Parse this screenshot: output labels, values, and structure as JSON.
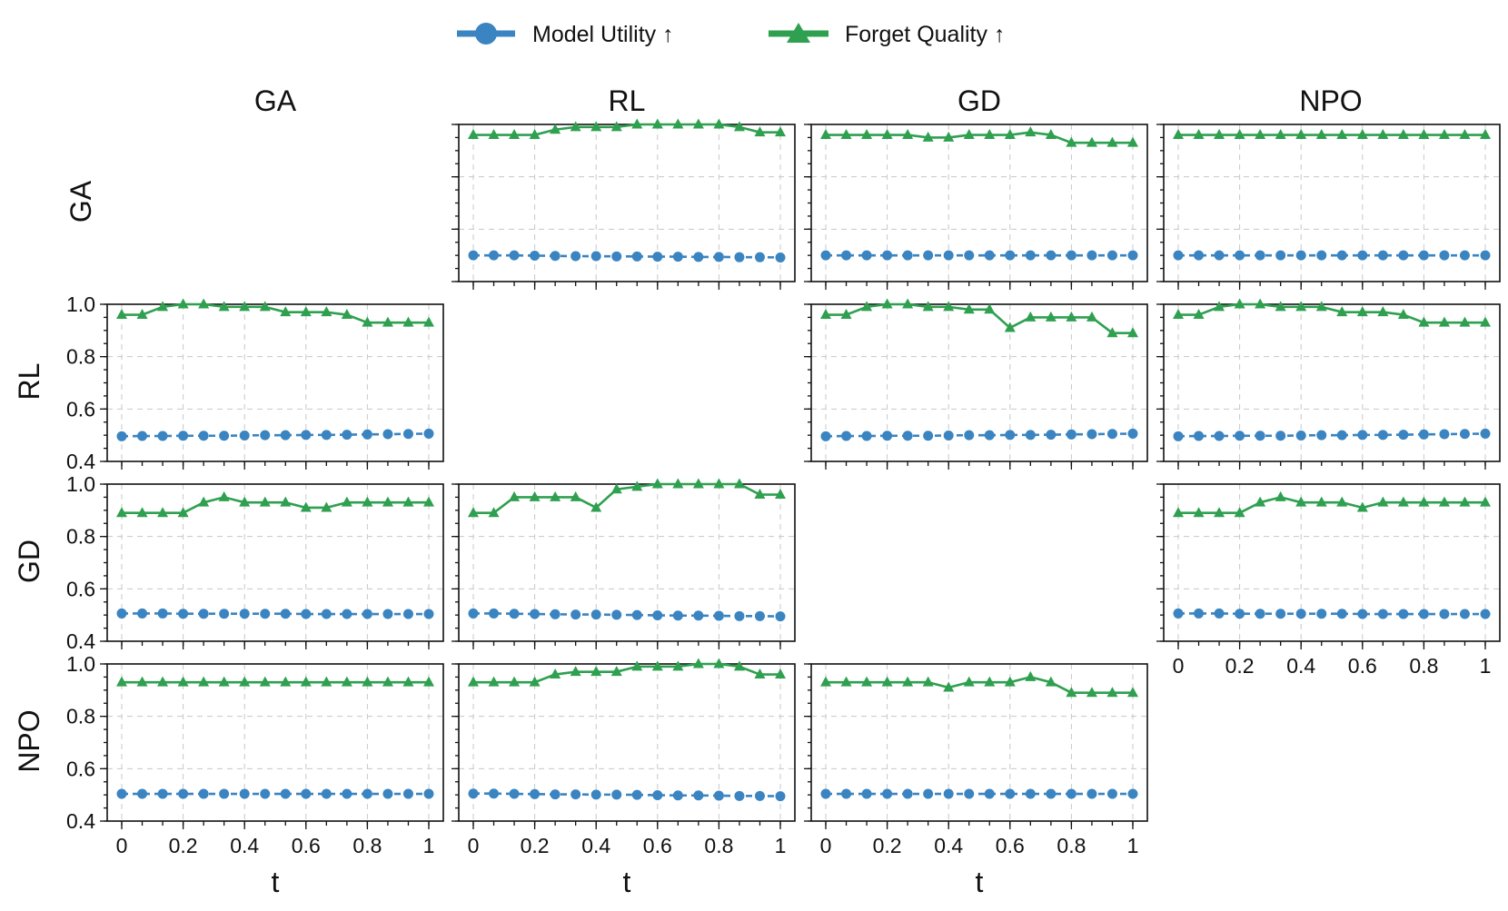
{
  "chart_data": {
    "type": "line",
    "layout": "grid",
    "rows": [
      "GA",
      "RL",
      "GD",
      "NPO"
    ],
    "columns": [
      "GA",
      "RL",
      "GD",
      "NPO"
    ],
    "x": [
      0,
      0.0667,
      0.1333,
      0.2,
      0.2667,
      0.3333,
      0.4,
      0.4667,
      0.5333,
      0.6,
      0.6667,
      0.7333,
      0.8,
      0.8667,
      0.9333,
      1
    ],
    "x_ticks": [
      0,
      0.2,
      0.4,
      0.6,
      0.8,
      1
    ],
    "x_tick_labels": [
      "0",
      "0.2",
      "0.4",
      "0.6",
      "0.8",
      "1"
    ],
    "xlabel": "t",
    "ylim": [
      0.4,
      1.0
    ],
    "y_ticks": [
      0.4,
      0.6,
      0.8,
      1.0
    ],
    "y_tick_labels": [
      "0.4",
      "0.6",
      "0.8",
      "1.0"
    ],
    "grid": true,
    "legend": {
      "placement": "top-center",
      "entries": [
        {
          "label": "Model Utility ↑",
          "color": "#3a84c1",
          "marker": "circle"
        },
        {
          "label": "Forget Quality ↑",
          "color": "#2ea04f",
          "marker": "triangle"
        }
      ]
    },
    "panels": [
      {
        "row": 0,
        "col": 1,
        "model_utility": [
          0.5,
          0.5,
          0.5,
          0.499,
          0.498,
          0.497,
          0.497,
          0.496,
          0.496,
          0.495,
          0.495,
          0.494,
          0.494,
          0.493,
          0.493,
          0.492
        ],
        "forget_quality": [
          0.96,
          0.96,
          0.96,
          0.96,
          0.98,
          0.99,
          0.99,
          0.99,
          1.0,
          1.0,
          1.0,
          1.0,
          1.0,
          0.99,
          0.97,
          0.97
        ]
      },
      {
        "row": 0,
        "col": 2,
        "model_utility": [
          0.5,
          0.5,
          0.5,
          0.5,
          0.5,
          0.5,
          0.5,
          0.5,
          0.5,
          0.5,
          0.5,
          0.5,
          0.5,
          0.5,
          0.5,
          0.5
        ],
        "forget_quality": [
          0.96,
          0.96,
          0.96,
          0.96,
          0.96,
          0.95,
          0.95,
          0.96,
          0.96,
          0.96,
          0.97,
          0.96,
          0.93,
          0.93,
          0.93,
          0.93
        ]
      },
      {
        "row": 0,
        "col": 3,
        "model_utility": [
          0.5,
          0.5,
          0.5,
          0.5,
          0.5,
          0.5,
          0.5,
          0.5,
          0.5,
          0.5,
          0.5,
          0.5,
          0.5,
          0.5,
          0.5,
          0.5
        ],
        "forget_quality": [
          0.96,
          0.96,
          0.96,
          0.96,
          0.96,
          0.96,
          0.96,
          0.96,
          0.96,
          0.96,
          0.96,
          0.96,
          0.96,
          0.96,
          0.96,
          0.96
        ]
      },
      {
        "row": 1,
        "col": 0,
        "model_utility": [
          0.496,
          0.497,
          0.497,
          0.498,
          0.498,
          0.498,
          0.499,
          0.5,
          0.5,
          0.501,
          0.501,
          0.502,
          0.503,
          0.504,
          0.505,
          0.506
        ],
        "forget_quality": [
          0.96,
          0.96,
          0.99,
          1.0,
          1.0,
          0.99,
          0.99,
          0.99,
          0.97,
          0.97,
          0.97,
          0.96,
          0.93,
          0.93,
          0.93,
          0.93
        ]
      },
      {
        "row": 1,
        "col": 2,
        "model_utility": [
          0.496,
          0.497,
          0.497,
          0.498,
          0.498,
          0.498,
          0.499,
          0.5,
          0.5,
          0.501,
          0.501,
          0.502,
          0.503,
          0.504,
          0.505,
          0.506
        ],
        "forget_quality": [
          0.96,
          0.96,
          0.99,
          1.0,
          1.0,
          0.99,
          0.99,
          0.98,
          0.98,
          0.91,
          0.95,
          0.95,
          0.95,
          0.95,
          0.89,
          0.89
        ]
      },
      {
        "row": 1,
        "col": 3,
        "model_utility": [
          0.496,
          0.497,
          0.497,
          0.498,
          0.498,
          0.498,
          0.499,
          0.5,
          0.5,
          0.501,
          0.501,
          0.502,
          0.503,
          0.504,
          0.505,
          0.506
        ],
        "forget_quality": [
          0.96,
          0.96,
          0.99,
          1.0,
          1.0,
          0.99,
          0.99,
          0.99,
          0.97,
          0.97,
          0.97,
          0.96,
          0.93,
          0.93,
          0.93,
          0.93
        ]
      },
      {
        "row": 2,
        "col": 0,
        "model_utility": [
          0.506,
          0.506,
          0.506,
          0.505,
          0.505,
          0.505,
          0.505,
          0.505,
          0.505,
          0.504,
          0.504,
          0.504,
          0.504,
          0.504,
          0.504,
          0.504
        ],
        "forget_quality": [
          0.89,
          0.89,
          0.89,
          0.89,
          0.93,
          0.95,
          0.93,
          0.93,
          0.93,
          0.91,
          0.91,
          0.93,
          0.93,
          0.93,
          0.93,
          0.93
        ]
      },
      {
        "row": 2,
        "col": 1,
        "model_utility": [
          0.506,
          0.506,
          0.505,
          0.504,
          0.503,
          0.502,
          0.502,
          0.501,
          0.5,
          0.499,
          0.498,
          0.498,
          0.497,
          0.496,
          0.496,
          0.495
        ],
        "forget_quality": [
          0.89,
          0.89,
          0.95,
          0.95,
          0.95,
          0.95,
          0.91,
          0.98,
          0.99,
          1.0,
          1.0,
          1.0,
          1.0,
          1.0,
          0.96,
          0.96
        ]
      },
      {
        "row": 2,
        "col": 3,
        "model_utility": [
          0.506,
          0.506,
          0.506,
          0.505,
          0.505,
          0.505,
          0.505,
          0.505,
          0.505,
          0.504,
          0.504,
          0.504,
          0.504,
          0.504,
          0.504,
          0.504
        ],
        "forget_quality": [
          0.89,
          0.89,
          0.89,
          0.89,
          0.93,
          0.95,
          0.93,
          0.93,
          0.93,
          0.91,
          0.93,
          0.93,
          0.93,
          0.93,
          0.93,
          0.93
        ]
      },
      {
        "row": 3,
        "col": 0,
        "model_utility": [
          0.504,
          0.504,
          0.504,
          0.504,
          0.504,
          0.504,
          0.504,
          0.504,
          0.504,
          0.504,
          0.504,
          0.504,
          0.504,
          0.504,
          0.504,
          0.504
        ],
        "forget_quality": [
          0.93,
          0.93,
          0.93,
          0.93,
          0.93,
          0.93,
          0.93,
          0.93,
          0.93,
          0.93,
          0.93,
          0.93,
          0.93,
          0.93,
          0.93,
          0.93
        ]
      },
      {
        "row": 3,
        "col": 1,
        "model_utility": [
          0.505,
          0.505,
          0.504,
          0.503,
          0.502,
          0.502,
          0.501,
          0.501,
          0.5,
          0.499,
          0.498,
          0.498,
          0.497,
          0.496,
          0.496,
          0.495
        ],
        "forget_quality": [
          0.93,
          0.93,
          0.93,
          0.93,
          0.96,
          0.97,
          0.97,
          0.97,
          0.99,
          0.99,
          0.99,
          1.0,
          1.0,
          0.99,
          0.96,
          0.96
        ]
      },
      {
        "row": 3,
        "col": 2,
        "model_utility": [
          0.504,
          0.504,
          0.504,
          0.504,
          0.504,
          0.504,
          0.504,
          0.504,
          0.504,
          0.504,
          0.504,
          0.504,
          0.504,
          0.504,
          0.504,
          0.504
        ],
        "forget_quality": [
          0.93,
          0.93,
          0.93,
          0.93,
          0.93,
          0.93,
          0.91,
          0.93,
          0.93,
          0.93,
          0.95,
          0.93,
          0.89,
          0.89,
          0.89,
          0.89
        ]
      }
    ]
  }
}
